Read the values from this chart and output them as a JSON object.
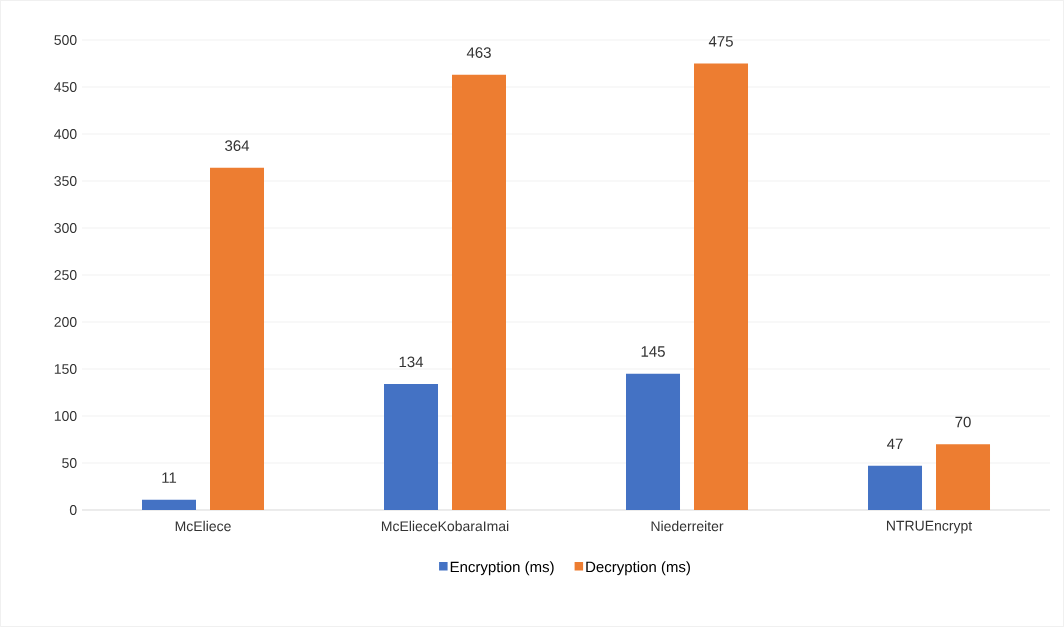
{
  "chart_data": {
    "type": "bar",
    "categories": [
      "McEliece",
      "McElieceKobaraImai",
      "Niederreiter",
      "NTRUEncrypt"
    ],
    "series": [
      {
        "name": "Encryption (ms)",
        "color": "#4472c4",
        "values": [
          11,
          134,
          145,
          47
        ]
      },
      {
        "name": "Decryption (ms)",
        "color": "#ed7d31",
        "values": [
          364,
          463,
          475,
          70
        ]
      }
    ],
    "ylim": [
      0,
      500
    ],
    "yticks": [
      0,
      50,
      100,
      150,
      200,
      250,
      300,
      350,
      400,
      450,
      500
    ],
    "grid": "y",
    "legend": "bottom",
    "data_labels": true
  }
}
